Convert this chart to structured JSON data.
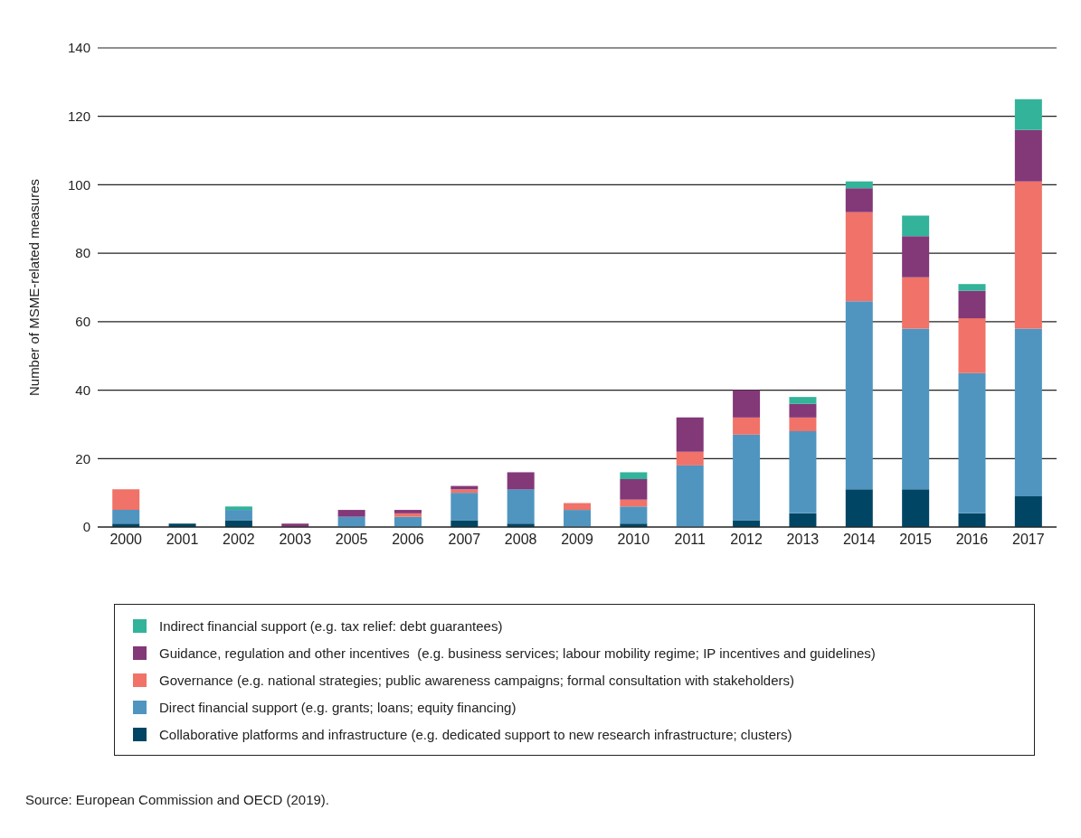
{
  "chart_data": {
    "type": "bar",
    "stacked": true,
    "ylabel": "Number of MSME-related measures",
    "categories": [
      "2000",
      "2001",
      "2002",
      "2003",
      "2005",
      "2006",
      "2007",
      "2008",
      "2009",
      "2010",
      "2011",
      "2012",
      "2013",
      "2014",
      "2015",
      "2016",
      "2017"
    ],
    "series": [
      {
        "name": "Collaborative platforms and infrastructure (e.g. dedicated support to new research infrastructure; clusters)",
        "color": "#004664",
        "values": [
          1,
          1,
          2,
          0,
          0,
          0,
          2,
          1,
          0,
          1,
          0,
          2,
          4,
          11,
          11,
          4,
          9
        ]
      },
      {
        "name": "Direct financial support (e.g. grants; loans; equity financing)",
        "color": "#4f95c0",
        "values": [
          4,
          0,
          3,
          0,
          3,
          3,
          8,
          10,
          5,
          5,
          18,
          25,
          24,
          55,
          47,
          41,
          49
        ]
      },
      {
        "name": "Governance (e.g. national strategies; public awareness campaigns; formal consultation with stakeholders)",
        "color": "#f07268",
        "values": [
          6,
          0,
          0,
          0,
          0,
          1,
          1,
          0,
          2,
          2,
          4,
          5,
          4,
          26,
          15,
          16,
          43
        ]
      },
      {
        "name": "Guidance, regulation and other incentives  (e.g. business services; labour mobility regime; IP incentives and guidelines)",
        "color": "#833878",
        "values": [
          0,
          0,
          0,
          1,
          2,
          1,
          1,
          5,
          0,
          6,
          10,
          8,
          4,
          7,
          12,
          8,
          15
        ]
      },
      {
        "name": "Indirect financial support (e.g. tax relief: debt guarantees)",
        "color": "#33b39a",
        "values": [
          0,
          0,
          1,
          0,
          0,
          0,
          0,
          0,
          0,
          2,
          0,
          0,
          2,
          2,
          6,
          2,
          9
        ]
      }
    ],
    "ylim": [
      0,
      140
    ],
    "yticks": [
      0,
      20,
      40,
      60,
      80,
      100,
      120,
      140
    ],
    "grid": "y",
    "legend": "bottom",
    "annotations": [
      "Source: European Commission and OECD (2019)."
    ]
  }
}
